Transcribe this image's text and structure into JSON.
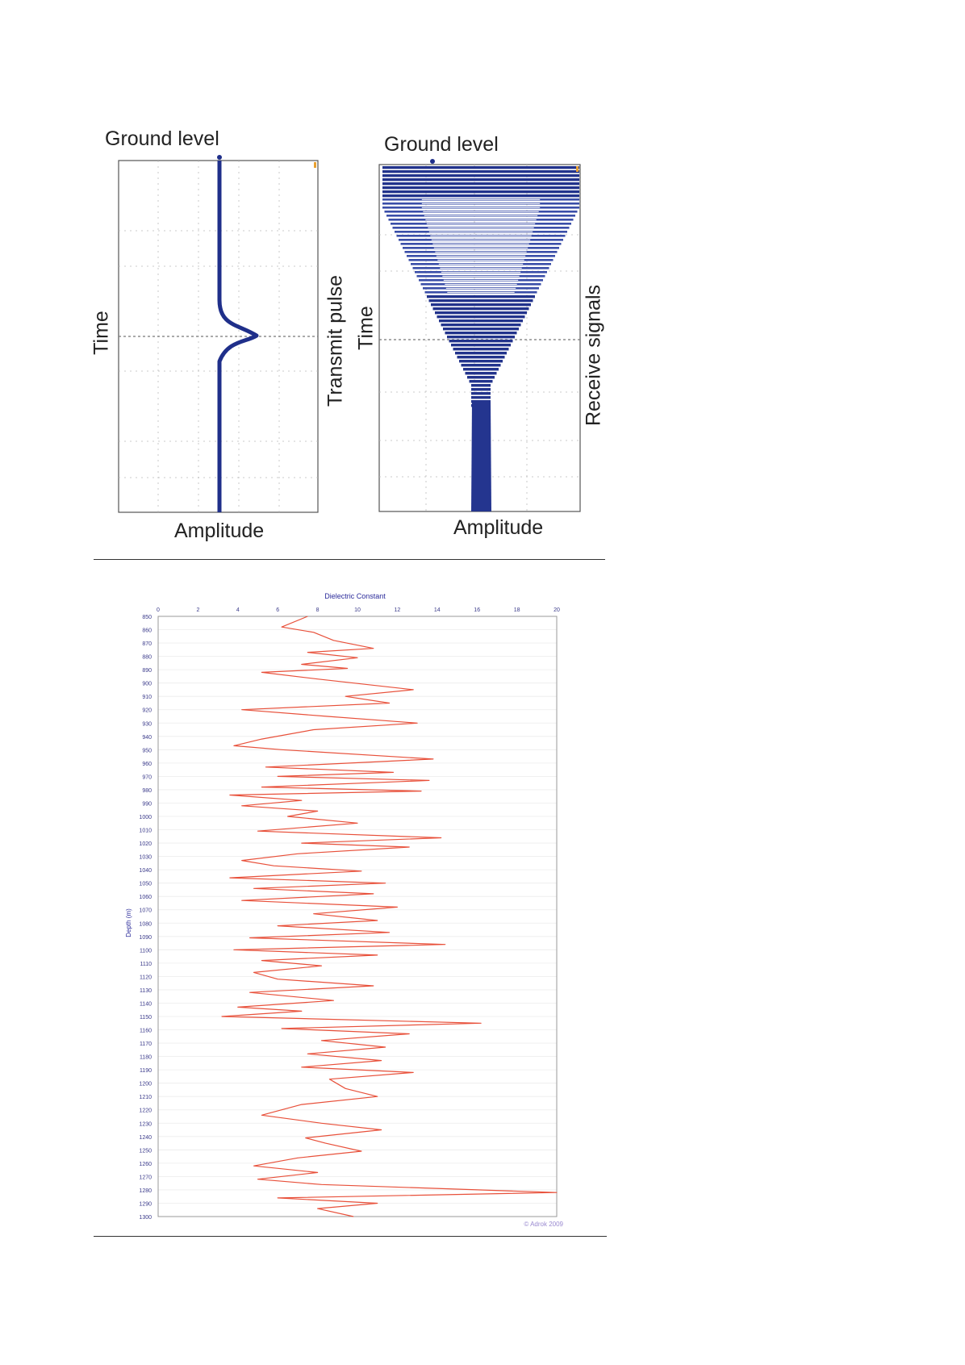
{
  "top_figure": {
    "panel_left": {
      "top_label": "Ground level",
      "left_label": "Time",
      "bottom_label": "Amplitude",
      "side_label": "Transmit pulse"
    },
    "panel_right": {
      "top_label": "Ground level",
      "left_label": "Time",
      "bottom_label": "Amplitude",
      "side_label": "Receive signals"
    }
  },
  "depth_chart": {
    "copyright": "© Adrok 2009",
    "colors": {
      "trace": "#e8503a",
      "axis_text": "#3a3a8a",
      "title": "#2a2a9a"
    }
  },
  "chart_data": {
    "type": "line",
    "title": "Dielectric Constant",
    "xlabel": "Dielectric Constant",
    "ylabel": "Depth (m)",
    "xlim": [
      0,
      20
    ],
    "ylim": [
      850,
      1300
    ],
    "y_inverted": true,
    "grid": true,
    "x_ticks": [
      0,
      2,
      4,
      6,
      8,
      10,
      12,
      14,
      16,
      18,
      20
    ],
    "y_ticks": [
      850,
      860,
      870,
      880,
      890,
      900,
      910,
      920,
      930,
      940,
      950,
      960,
      970,
      980,
      990,
      1000,
      1010,
      1020,
      1030,
      1040,
      1050,
      1060,
      1070,
      1080,
      1090,
      1100,
      1110,
      1120,
      1130,
      1140,
      1150,
      1160,
      1170,
      1180,
      1190,
      1200,
      1210,
      1220,
      1230,
      1240,
      1250,
      1260,
      1270,
      1280,
      1290,
      1300
    ],
    "series": [
      {
        "points": [
          [
            7.5,
            850
          ],
          [
            6.2,
            858
          ],
          [
            7.8,
            862
          ],
          [
            8.8,
            868
          ],
          [
            10.8,
            874
          ],
          [
            7.5,
            877
          ],
          [
            10.0,
            881
          ],
          [
            7.2,
            886
          ],
          [
            9.5,
            889
          ],
          [
            5.2,
            892
          ],
          [
            8.0,
            897
          ],
          [
            12.8,
            905
          ],
          [
            9.4,
            910
          ],
          [
            11.6,
            915
          ],
          [
            4.2,
            920
          ],
          [
            8.5,
            925
          ],
          [
            13.0,
            930
          ],
          [
            7.8,
            935
          ],
          [
            5.2,
            942
          ],
          [
            3.8,
            947
          ],
          [
            6.2,
            950
          ],
          [
            13.8,
            957
          ],
          [
            5.4,
            963
          ],
          [
            11.8,
            967
          ],
          [
            6.0,
            970
          ],
          [
            13.6,
            973
          ],
          [
            5.2,
            978
          ],
          [
            13.2,
            981
          ],
          [
            3.6,
            984
          ],
          [
            7.2,
            988
          ],
          [
            4.2,
            992
          ],
          [
            8.0,
            996
          ],
          [
            6.5,
            1000
          ],
          [
            10.0,
            1005
          ],
          [
            5.0,
            1011
          ],
          [
            14.2,
            1016
          ],
          [
            7.2,
            1020
          ],
          [
            12.6,
            1023
          ],
          [
            7.0,
            1028
          ],
          [
            4.2,
            1033
          ],
          [
            5.8,
            1037
          ],
          [
            10.2,
            1041
          ],
          [
            3.6,
            1046
          ],
          [
            11.4,
            1050
          ],
          [
            4.8,
            1054
          ],
          [
            10.8,
            1058
          ],
          [
            4.2,
            1063
          ],
          [
            12.0,
            1068
          ],
          [
            7.8,
            1073
          ],
          [
            11.0,
            1078
          ],
          [
            6.0,
            1082
          ],
          [
            11.6,
            1087
          ],
          [
            4.6,
            1091
          ],
          [
            14.4,
            1096
          ],
          [
            3.8,
            1100
          ],
          [
            11.0,
            1104
          ],
          [
            5.2,
            1108
          ],
          [
            8.2,
            1112
          ],
          [
            4.8,
            1117
          ],
          [
            6.0,
            1122
          ],
          [
            10.8,
            1127
          ],
          [
            4.6,
            1132
          ],
          [
            8.8,
            1138
          ],
          [
            4.0,
            1143
          ],
          [
            7.2,
            1146
          ],
          [
            3.2,
            1150
          ],
          [
            16.2,
            1155
          ],
          [
            6.2,
            1159
          ],
          [
            12.6,
            1163
          ],
          [
            8.2,
            1168
          ],
          [
            11.4,
            1173
          ],
          [
            7.5,
            1178
          ],
          [
            11.2,
            1183
          ],
          [
            7.2,
            1188
          ],
          [
            12.8,
            1192
          ],
          [
            8.6,
            1197
          ],
          [
            9.4,
            1204
          ],
          [
            11.0,
            1210
          ],
          [
            7.2,
            1216
          ],
          [
            5.2,
            1224
          ],
          [
            8.2,
            1230
          ],
          [
            11.2,
            1235
          ],
          [
            7.4,
            1241
          ],
          [
            8.4,
            1245
          ],
          [
            10.2,
            1251
          ],
          [
            7.0,
            1256
          ],
          [
            4.8,
            1262
          ],
          [
            8.0,
            1267
          ],
          [
            5.0,
            1272
          ],
          [
            8.2,
            1276
          ],
          [
            20.0,
            1282
          ],
          [
            6.0,
            1286
          ],
          [
            11.0,
            1290
          ],
          [
            8.0,
            1294
          ],
          [
            9.8,
            1300
          ]
        ]
      }
    ]
  }
}
